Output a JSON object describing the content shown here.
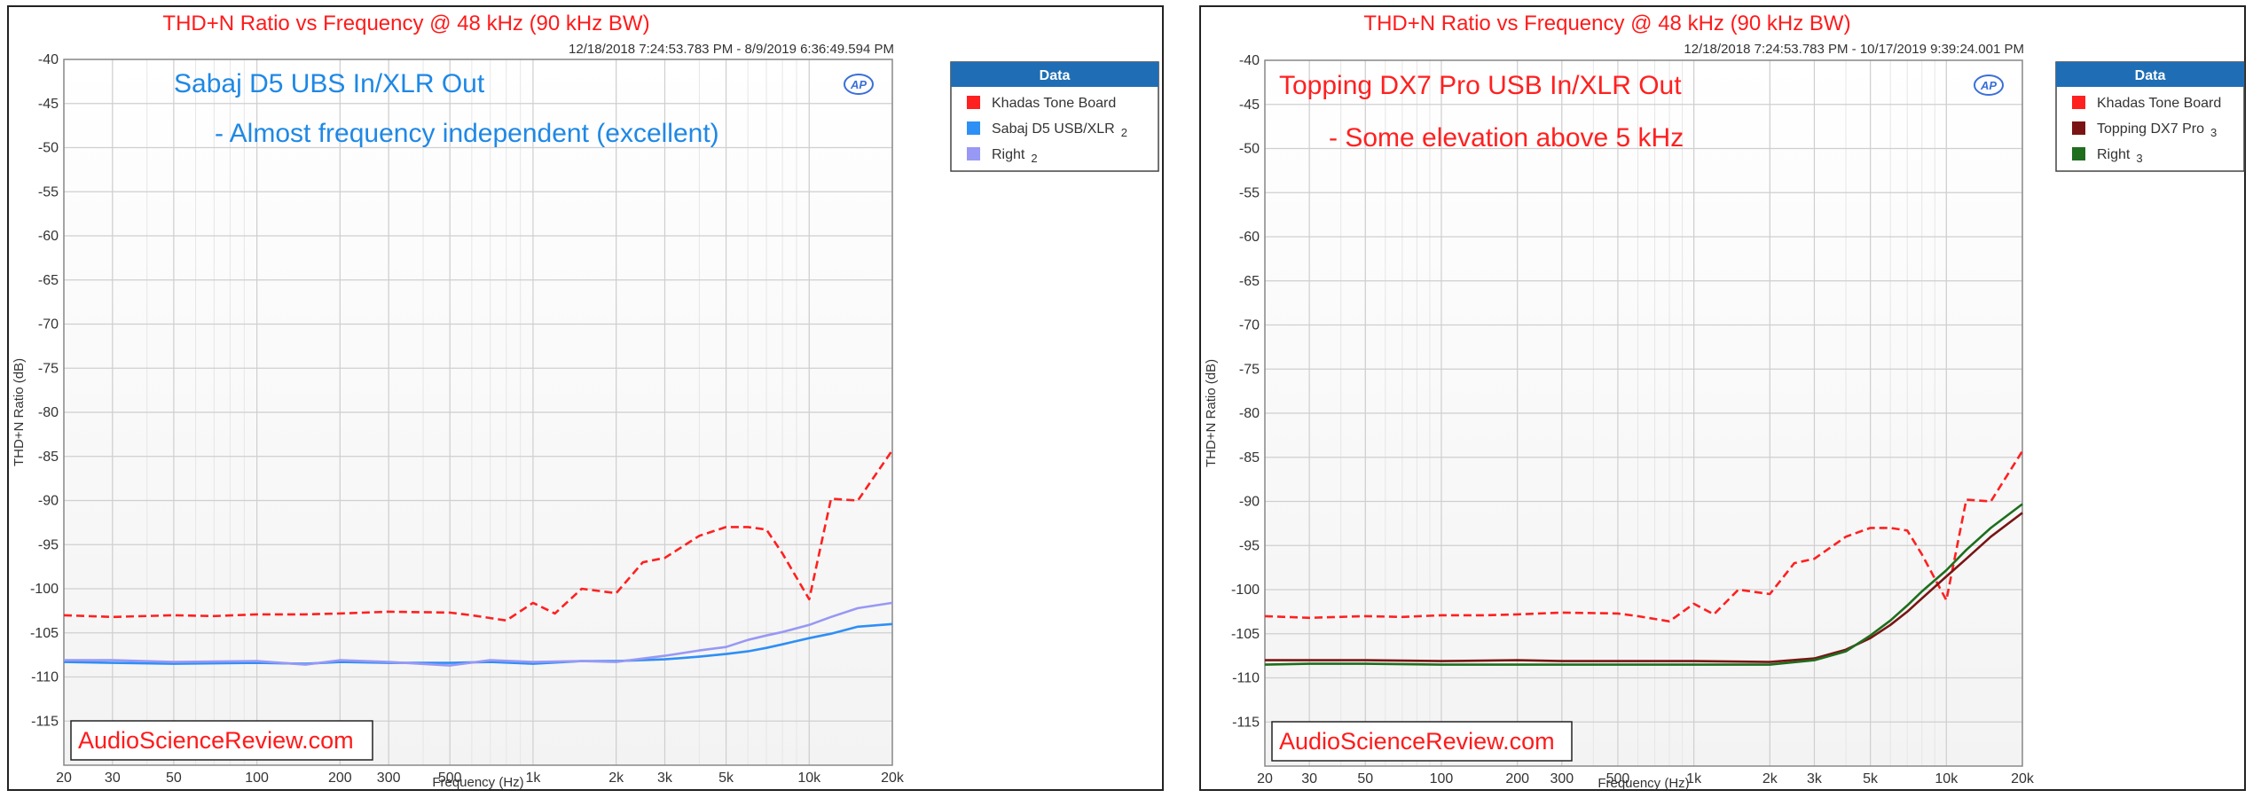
{
  "chart_data": [
    {
      "type": "line",
      "title": "THD+N Ratio vs Frequency @ 48 kHz (90 kHz BW)",
      "timestamp": "12/18/2018 7:24:53.783 PM - 8/9/2019 6:36:49.594 PM",
      "xlabel": "Frequency (Hz)",
      "ylabel": "THD+N Ratio (dB)",
      "xscale": "log",
      "xlim": [
        20,
        20000
      ],
      "ylim": [
        -120,
        -40
      ],
      "grid": true,
      "x_tick_values": [
        20,
        30,
        50,
        100,
        200,
        300,
        500,
        1000,
        2000,
        3000,
        5000,
        10000,
        20000
      ],
      "x_tick_labels": [
        "20",
        "30",
        "50",
        "100",
        "200",
        "300",
        "500",
        "1k",
        "2k",
        "3k",
        "5k",
        "10k",
        "20k"
      ],
      "y_ticks": [
        -40,
        -45,
        -50,
        -55,
        -60,
        -65,
        -70,
        -75,
        -80,
        -85,
        -90,
        -95,
        -100,
        -105,
        -110,
        -115
      ],
      "legend_title": "Data",
      "legend_position": "top-right",
      "annotation_line1": "Sabaj D5 UBS In/XLR Out",
      "annotation_line2": "- Almost frequency independent (excellent)",
      "annotation_color": "#1e88e5",
      "watermark": "AudioScienceReview.com",
      "series": [
        {
          "name": "Khadas Tone Board",
          "color": "#ff2020",
          "dashed": true,
          "x": [
            20,
            30,
            50,
            70,
            100,
            150,
            200,
            300,
            500,
            600,
            800,
            1000,
            1200,
            1500,
            2000,
            2500,
            3000,
            4000,
            5000,
            6000,
            7000,
            8000,
            10000,
            12000,
            15000,
            20000
          ],
          "y": [
            -103,
            -103.2,
            -103,
            -103.1,
            -102.9,
            -102.9,
            -102.8,
            -102.6,
            -102.7,
            -103,
            -103.6,
            -101.6,
            -102.8,
            -100,
            -100.5,
            -97,
            -96.5,
            -94,
            -93,
            -93,
            -93.3,
            -96,
            -101.2,
            -89.8,
            -90,
            -84.3
          ]
        },
        {
          "name": "Sabaj D5 USB/XLR",
          "name_suffix": "2",
          "color": "#2e8ff5",
          "dashed": false,
          "x": [
            20,
            30,
            50,
            100,
            150,
            200,
            300,
            500,
            700,
            1000,
            1500,
            2000,
            3000,
            4000,
            5000,
            6000,
            7000,
            8000,
            10000,
            12000,
            15000,
            20000
          ],
          "y": [
            -108.3,
            -108.4,
            -108.5,
            -108.4,
            -108.5,
            -108.3,
            -108.4,
            -108.4,
            -108.3,
            -108.5,
            -108.2,
            -108.2,
            -108,
            -107.7,
            -107.4,
            -107.1,
            -106.7,
            -106.3,
            -105.6,
            -105.1,
            -104.3,
            -104
          ]
        },
        {
          "name": "Right",
          "name_suffix": "2",
          "color": "#9898f5",
          "dashed": false,
          "x": [
            20,
            30,
            50,
            100,
            150,
            200,
            300,
            500,
            700,
            1000,
            1500,
            2000,
            3000,
            4000,
            5000,
            6000,
            7000,
            8000,
            10000,
            12000,
            15000,
            20000
          ],
          "y": [
            -108.1,
            -108.1,
            -108.3,
            -108.2,
            -108.6,
            -108.1,
            -108.3,
            -108.7,
            -108.1,
            -108.3,
            -108.2,
            -108.3,
            -107.6,
            -107,
            -106.6,
            -105.8,
            -105.3,
            -104.9,
            -104.1,
            -103.2,
            -102.2,
            -101.6
          ]
        }
      ]
    },
    {
      "type": "line",
      "title": "THD+N Ratio vs Frequency @ 48 kHz (90 kHz BW)",
      "timestamp": "12/18/2018 7:24:53.783 PM - 10/17/2019 9:39:24.001 PM",
      "xlabel": "Frequency (Hz)",
      "ylabel": "THD+N Ratio (dB)",
      "xscale": "log",
      "xlim": [
        20,
        20000
      ],
      "ylim": [
        -120,
        -40
      ],
      "grid": true,
      "x_tick_values": [
        20,
        30,
        50,
        100,
        200,
        300,
        500,
        1000,
        2000,
        3000,
        5000,
        10000,
        20000
      ],
      "x_tick_labels": [
        "20",
        "30",
        "50",
        "100",
        "200",
        "300",
        "500",
        "1k",
        "2k",
        "3k",
        "5k",
        "10k",
        "20k"
      ],
      "y_ticks": [
        -40,
        -45,
        -50,
        -55,
        -60,
        -65,
        -70,
        -75,
        -80,
        -85,
        -90,
        -95,
        -100,
        -105,
        -110,
        -115
      ],
      "legend_title": "Data",
      "legend_position": "top-right",
      "annotation_line1": "Topping DX7 Pro USB In/XLR Out",
      "annotation_line2": "- Some elevation above 5 kHz",
      "annotation_color": "#ff2020",
      "watermark": "AudioScienceReview.com",
      "series": [
        {
          "name": "Khadas Tone Board",
          "color": "#ff2020",
          "dashed": true,
          "x": [
            20,
            30,
            50,
            70,
            100,
            150,
            200,
            300,
            500,
            600,
            800,
            1000,
            1200,
            1500,
            2000,
            2500,
            3000,
            4000,
            5000,
            6000,
            7000,
            8000,
            10000,
            12000,
            15000,
            20000
          ],
          "y": [
            -103,
            -103.2,
            -103,
            -103.1,
            -102.9,
            -102.9,
            -102.8,
            -102.6,
            -102.7,
            -103,
            -103.6,
            -101.6,
            -102.8,
            -100,
            -100.5,
            -97,
            -96.5,
            -94,
            -93,
            -93,
            -93.3,
            -96,
            -101.2,
            -89.8,
            -90,
            -84.3
          ]
        },
        {
          "name": "Topping DX7 Pro",
          "name_suffix": "3",
          "color": "#7a1414",
          "dashed": false,
          "x": [
            20,
            30,
            50,
            100,
            200,
            300,
            500,
            1000,
            2000,
            3000,
            4000,
            5000,
            6000,
            7000,
            8000,
            10000,
            12000,
            15000,
            20000
          ],
          "y": [
            -108,
            -108,
            -108,
            -108.1,
            -108,
            -108.1,
            -108.1,
            -108.1,
            -108.2,
            -107.8,
            -106.8,
            -105.5,
            -104,
            -102.5,
            -101,
            -98.5,
            -96.5,
            -94,
            -91.3
          ]
        },
        {
          "name": "Right",
          "name_suffix": "3",
          "color": "#1e6e1e",
          "dashed": false,
          "x": [
            20,
            30,
            50,
            100,
            200,
            300,
            500,
            1000,
            2000,
            3000,
            4000,
            5000,
            6000,
            7000,
            8000,
            10000,
            12000,
            15000,
            20000
          ],
          "y": [
            -108.5,
            -108.4,
            -108.4,
            -108.5,
            -108.5,
            -108.5,
            -108.5,
            -108.5,
            -108.5,
            -108,
            -107,
            -105.2,
            -103.5,
            -101.8,
            -100.2,
            -97.8,
            -95.5,
            -93,
            -90.3
          ]
        }
      ]
    }
  ]
}
